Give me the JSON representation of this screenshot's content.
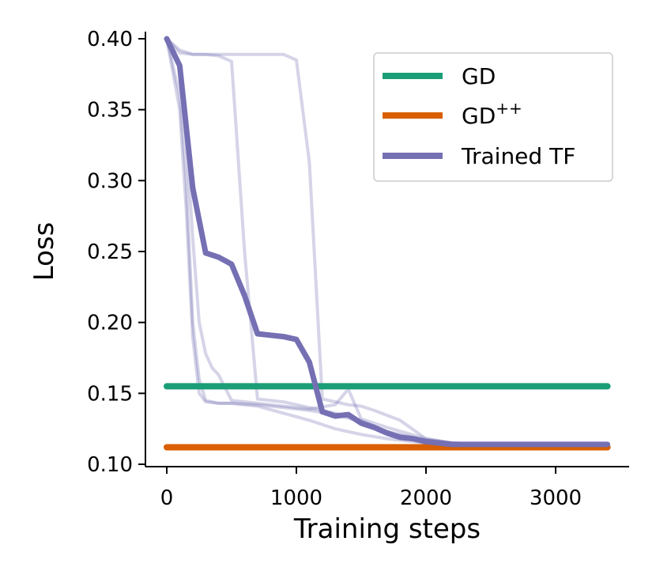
{
  "chart_data": {
    "type": "line",
    "title": "",
    "xlabel": "Training steps",
    "ylabel": "Loss",
    "xlim": [
      -150,
      3500
    ],
    "ylim": [
      0.1,
      0.4
    ],
    "xticks": [
      0,
      1000,
      2000,
      3000
    ],
    "yticks": [
      0.1,
      0.15,
      0.2,
      0.25,
      0.3,
      0.35,
      0.4
    ],
    "legend_position": "top-right",
    "grid": false,
    "series": [
      {
        "name": "GD",
        "kind": "hline",
        "color": "#1b9e77",
        "x": [
          0,
          3400
        ],
        "y": [
          0.155,
          0.155
        ]
      },
      {
        "name": "GD++",
        "name_base": "GD",
        "name_sup": "++",
        "kind": "hline",
        "color": "#d95f02",
        "x": [
          0,
          3400
        ],
        "y": [
          0.112,
          0.112
        ]
      },
      {
        "name": "Trained TF",
        "kind": "line",
        "color": "#7570b3",
        "x": [
          0,
          100,
          200,
          300,
          400,
          500,
          600,
          700,
          800,
          900,
          1000,
          1100,
          1200,
          1300,
          1400,
          1500,
          1600,
          1700,
          1800,
          1900,
          2000,
          2100,
          2200,
          2300,
          2400,
          2500,
          2600,
          2700,
          2800,
          2900,
          3000,
          3100,
          3200,
          3300,
          3400
        ],
        "y": [
          0.4,
          0.381,
          0.295,
          0.249,
          0.246,
          0.241,
          0.219,
          0.192,
          0.191,
          0.19,
          0.188,
          0.172,
          0.137,
          0.134,
          0.135,
          0.129,
          0.126,
          0.122,
          0.119,
          0.118,
          0.116,
          0.115,
          0.114,
          0.114,
          0.114,
          0.114,
          0.114,
          0.114,
          0.114,
          0.114,
          0.114,
          0.114,
          0.114,
          0.114,
          0.114
        ]
      }
    ],
    "runs": [
      {
        "x": [
          0,
          100,
          200,
          300,
          400,
          500,
          700,
          900,
          1000,
          1100,
          1200,
          1400,
          1500,
          1600,
          1800,
          2000,
          2200,
          2500,
          3000,
          3400
        ],
        "y": [
          0.4,
          0.39,
          0.389,
          0.389,
          0.389,
          0.389,
          0.389,
          0.389,
          0.385,
          0.313,
          0.146,
          0.142,
          0.141,
          0.138,
          0.131,
          0.118,
          0.115,
          0.114,
          0.114,
          0.114
        ]
      },
      {
        "x": [
          0,
          100,
          200,
          300,
          400,
          500,
          600,
          700,
          900,
          1100,
          1300,
          1500,
          1700,
          2000,
          2200,
          2500,
          3000,
          3400
        ],
        "y": [
          0.4,
          0.392,
          0.389,
          0.389,
          0.388,
          0.384,
          0.25,
          0.146,
          0.144,
          0.14,
          0.136,
          0.131,
          0.123,
          0.117,
          0.115,
          0.114,
          0.114,
          0.114
        ]
      },
      {
        "x": [
          0,
          100,
          150,
          200,
          250,
          300,
          400,
          500,
          700,
          900,
          1100,
          1300,
          1500,
          1700,
          2000,
          2200,
          2500,
          3000,
          3400
        ],
        "y": [
          0.4,
          0.36,
          0.3,
          0.2,
          0.16,
          0.145,
          0.143,
          0.143,
          0.142,
          0.14,
          0.138,
          0.135,
          0.13,
          0.122,
          0.117,
          0.115,
          0.114,
          0.114,
          0.114
        ]
      },
      {
        "x": [
          0,
          100,
          150,
          200,
          250,
          300,
          350,
          400,
          500,
          700,
          900,
          1100,
          1300,
          1400,
          1500,
          1700,
          2000,
          2200,
          2500,
          3000,
          3400
        ],
        "y": [
          0.4,
          0.38,
          0.33,
          0.26,
          0.2,
          0.178,
          0.168,
          0.163,
          0.145,
          0.143,
          0.141,
          0.139,
          0.142,
          0.153,
          0.132,
          0.126,
          0.118,
          0.115,
          0.114,
          0.114,
          0.114
        ]
      },
      {
        "x": [
          0,
          100,
          150,
          200,
          250,
          300,
          400,
          500,
          700,
          900,
          1100,
          1300,
          1500,
          1700,
          2000,
          2200,
          2500,
          3000,
          3400
        ],
        "y": [
          0.4,
          0.35,
          0.28,
          0.19,
          0.15,
          0.144,
          0.143,
          0.143,
          0.141,
          0.136,
          0.131,
          0.125,
          0.121,
          0.118,
          0.115,
          0.114,
          0.114,
          0.114,
          0.114
        ]
      }
    ],
    "run_color": "#7570b3",
    "run_opacity": 0.3
  }
}
